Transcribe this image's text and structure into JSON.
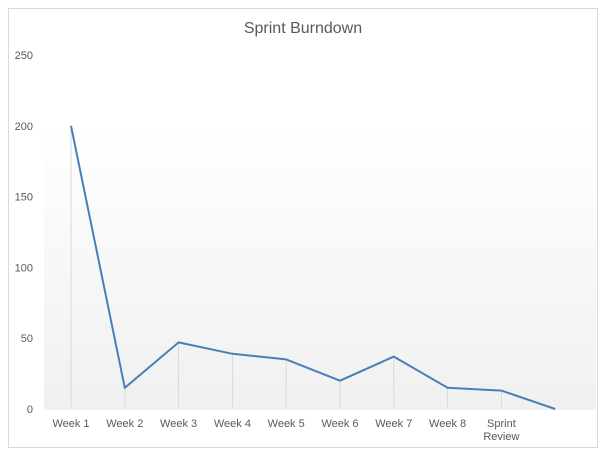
{
  "chart_data": {
    "type": "line",
    "title": "Sprint Burndown",
    "xlabel": "",
    "ylabel": "",
    "categories": [
      "Week 1",
      "Week 2",
      "Week 3",
      "Week 4",
      "Week 5",
      "Week 6",
      "Week 7",
      "Week 8",
      "Sprint Review",
      ""
    ],
    "series": [
      {
        "values": [
          200,
          15,
          47,
          39,
          35,
          20,
          37,
          15,
          13,
          0
        ],
        "color": "#4a7ebb"
      }
    ],
    "ylim": [
      0,
      250
    ],
    "yticks": [
      0,
      50,
      100,
      150,
      200,
      250
    ],
    "grid": "vertical drop lines",
    "legend": "none"
  }
}
